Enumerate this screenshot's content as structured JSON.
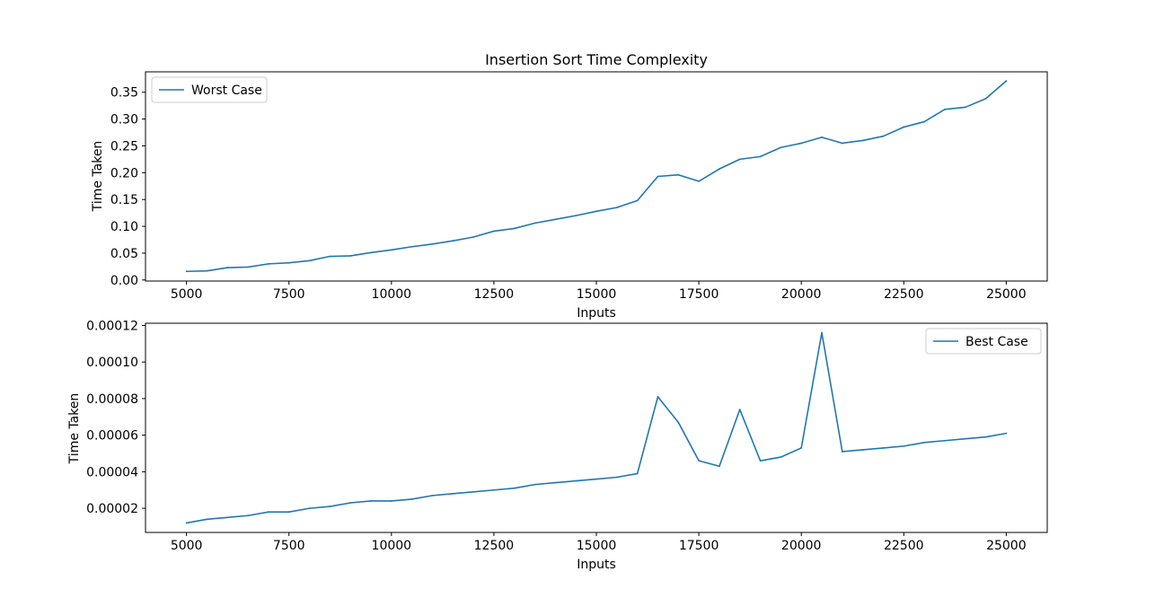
{
  "chart_data": [
    {
      "type": "line",
      "title": "Insertion Sort Time Complexity",
      "xlabel": "Inputs",
      "ylabel": "Time Taken",
      "xlim": [
        4000,
        26000
      ],
      "ylim": [
        -0.002,
        0.388
      ],
      "xticks": [
        5000,
        7500,
        10000,
        12500,
        15000,
        17500,
        20000,
        22500,
        25000
      ],
      "xtick_labels": [
        "5000",
        "7500",
        "10000",
        "12500",
        "15000",
        "17500",
        "20000",
        "22500",
        "25000"
      ],
      "yticks": [
        0,
        0.05,
        0.1,
        0.15,
        0.2,
        0.25,
        0.3,
        0.35
      ],
      "ytick_labels": [
        "0.00",
        "0.05",
        "0.10",
        "0.15",
        "0.20",
        "0.25",
        "0.30",
        "0.35"
      ],
      "grid": false,
      "legend_position": "upper left",
      "series": [
        {
          "name": "Worst Case",
          "color": "#1f77b4",
          "x": [
            5000,
            5500,
            6000,
            6500,
            7000,
            7500,
            8000,
            8500,
            9000,
            9500,
            10000,
            10500,
            11000,
            11500,
            12000,
            12500,
            13000,
            13500,
            14000,
            14500,
            15000,
            15500,
            16000,
            16500,
            17000,
            17500,
            18000,
            18500,
            19000,
            19500,
            20000,
            20500,
            21000,
            21500,
            22000,
            22500,
            23000,
            23500,
            24000,
            24500,
            25000
          ],
          "y": [
            0.016,
            0.017,
            0.023,
            0.024,
            0.03,
            0.032,
            0.036,
            0.044,
            0.045,
            0.051,
            0.056,
            0.062,
            0.067,
            0.073,
            0.08,
            0.091,
            0.096,
            0.106,
            0.113,
            0.12,
            0.128,
            0.135,
            0.148,
            0.193,
            0.196,
            0.184,
            0.207,
            0.225,
            0.23,
            0.247,
            0.255,
            0.266,
            0.255,
            0.26,
            0.268,
            0.285,
            0.295,
            0.318,
            0.322,
            0.338,
            0.371
          ]
        }
      ]
    },
    {
      "type": "line",
      "title": "",
      "xlabel": "Inputs",
      "ylabel": "Time Taken",
      "xlim": [
        4000,
        26000
      ],
      "ylim": [
        6.8e-06,
        0.0001212
      ],
      "xticks": [
        5000,
        7500,
        10000,
        12500,
        15000,
        17500,
        20000,
        22500,
        25000
      ],
      "xtick_labels": [
        "5000",
        "7500",
        "10000",
        "12500",
        "15000",
        "17500",
        "20000",
        "22500",
        "25000"
      ],
      "yticks": [
        2e-05,
        4e-05,
        6e-05,
        8e-05,
        0.0001,
        0.00012
      ],
      "ytick_labels": [
        "0.00002",
        "0.00004",
        "0.00006",
        "0.00008",
        "0.00010",
        "0.00012"
      ],
      "grid": false,
      "legend_position": "upper right",
      "series": [
        {
          "name": "Best Case",
          "color": "#1f77b4",
          "x": [
            5000,
            5500,
            6000,
            6500,
            7000,
            7500,
            8000,
            8500,
            9000,
            9500,
            10000,
            10500,
            11000,
            11500,
            12000,
            12500,
            13000,
            13500,
            14000,
            14500,
            15000,
            15500,
            16000,
            16500,
            17000,
            17500,
            18000,
            18500,
            19000,
            19500,
            20000,
            20500,
            21000,
            21500,
            22000,
            22500,
            23000,
            23500,
            24000,
            24500,
            25000
          ],
          "y": [
            1.2e-05,
            1.4e-05,
            1.5e-05,
            1.6e-05,
            1.8e-05,
            1.8e-05,
            2e-05,
            2.1e-05,
            2.3e-05,
            2.4e-05,
            2.4e-05,
            2.5e-05,
            2.7e-05,
            2.8e-05,
            2.9e-05,
            3e-05,
            3.1e-05,
            3.3e-05,
            3.4e-05,
            3.5e-05,
            3.6e-05,
            3.7e-05,
            3.9e-05,
            8.1e-05,
            6.7e-05,
            4.6e-05,
            4.3e-05,
            7.4e-05,
            4.6e-05,
            4.8e-05,
            5.3e-05,
            0.000116,
            5.1e-05,
            5.2e-05,
            5.3e-05,
            5.4e-05,
            5.6e-05,
            5.7e-05,
            5.8e-05,
            5.9e-05,
            6.1e-05
          ]
        }
      ]
    }
  ]
}
